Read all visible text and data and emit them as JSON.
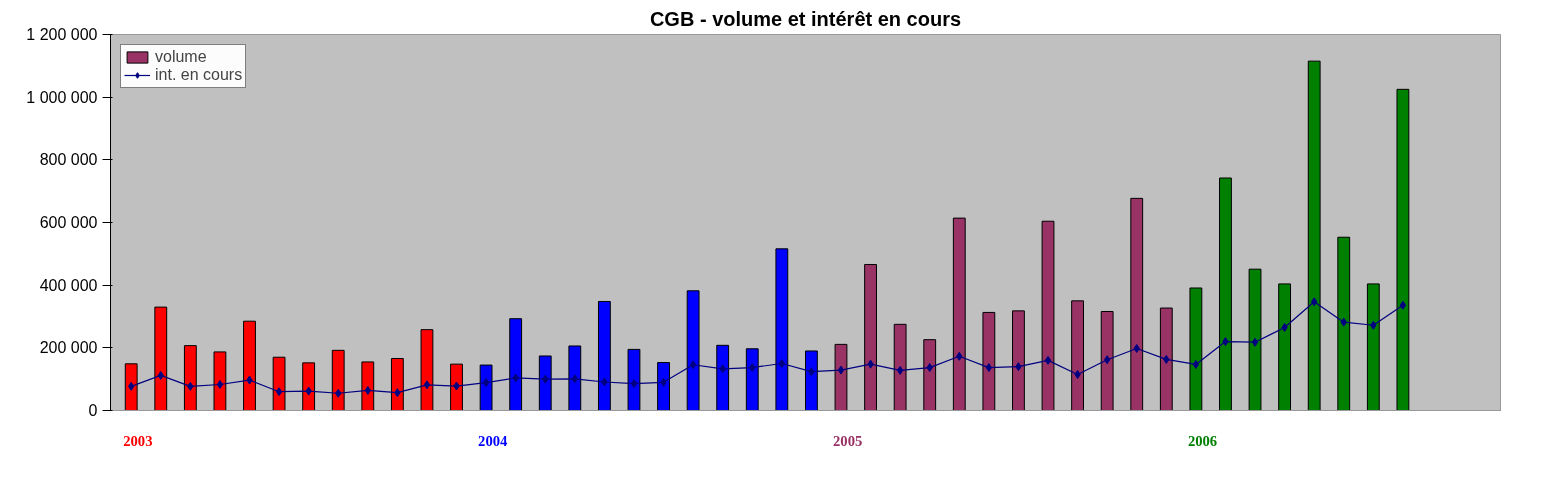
{
  "chart_data": {
    "type": "bar",
    "title": "CGB - volume et intérêt en cours",
    "categories": [
      null,
      null,
      null,
      null,
      null,
      null,
      null,
      null,
      null,
      null,
      null,
      null,
      null,
      null,
      null,
      null,
      null,
      null,
      null,
      null,
      null,
      null,
      null,
      null,
      null,
      null,
      null,
      null,
      null,
      null,
      null,
      null,
      null,
      null,
      null,
      null,
      null,
      null,
      null,
      null,
      null,
      null,
      null,
      null
    ],
    "series": [
      {
        "name": "volume",
        "type": "bar",
        "color": "#993366",
        "colors": [
          "#ff0000",
          "#ff0000",
          "#ff0000",
          "#ff0000",
          "#ff0000",
          "#ff0000",
          "#ff0000",
          "#ff0000",
          "#ff0000",
          "#ff0000",
          "#ff0000",
          "#ff0000",
          "#0000ff",
          "#0000ff",
          "#0000ff",
          "#0000ff",
          "#0000ff",
          "#0000ff",
          "#0000ff",
          "#0000ff",
          "#0000ff",
          "#0000ff",
          "#0000ff",
          "#0000ff",
          "#993366",
          "#993366",
          "#993366",
          "#993366",
          "#993366",
          "#993366",
          "#993366",
          "#993366",
          "#993366",
          "#993366",
          "#993366",
          "#993366",
          "#008000",
          "#008000",
          "#008000",
          "#008000",
          "#008000",
          "#008000",
          "#008000",
          "#008000"
        ],
        "values": [
          149000,
          330000,
          207000,
          187000,
          285000,
          170000,
          152000,
          192000,
          155000,
          166000,
          258000,
          148000,
          145000,
          293000,
          174000,
          206000,
          348000,
          195000,
          153000,
          382000,
          208000,
          197000,
          516000,
          190000,
          211000,
          466000,
          275000,
          226000,
          614000,
          313000,
          318000,
          604000,
          350000,
          316000,
          677000,
          327000,
          391000,
          742000,
          451000,
          404000,
          1115000,
          553000,
          404000,
          1025000
        ]
      },
      {
        "name": "int. en cours",
        "type": "line",
        "color": "#000080",
        "marker": "diamond",
        "values": [
          77000,
          112000,
          77000,
          83000,
          97000,
          60000,
          62000,
          55000,
          64000,
          57000,
          82000,
          78000,
          89000,
          104000,
          100000,
          101000,
          91000,
          86000,
          90000,
          146000,
          133000,
          137000,
          150000,
          124000,
          129000,
          148000,
          128000,
          137000,
          173000,
          137000,
          140000,
          160000,
          115000,
          162000,
          198000,
          163000,
          147000,
          220000,
          218000,
          265000,
          347000,
          282000,
          272000,
          336000
        ]
      }
    ],
    "annotations": [
      "2003",
      "2004",
      "2005",
      "2006"
    ],
    "ylim": [
      0,
      1200000
    ],
    "yticks": [
      {
        "value": 0,
        "label": "0"
      },
      {
        "value": 200000,
        "label": "200 000"
      },
      {
        "value": 400000,
        "label": "400 000"
      },
      {
        "value": 600000,
        "label": "600 000"
      },
      {
        "value": 800000,
        "label": "800 000"
      },
      {
        "value": 1000000,
        "label": "1 000 000"
      },
      {
        "value": 1200000,
        "label": "1 200 000"
      }
    ],
    "grid": false,
    "legend": "top left",
    "tick_labels": "y"
  }
}
